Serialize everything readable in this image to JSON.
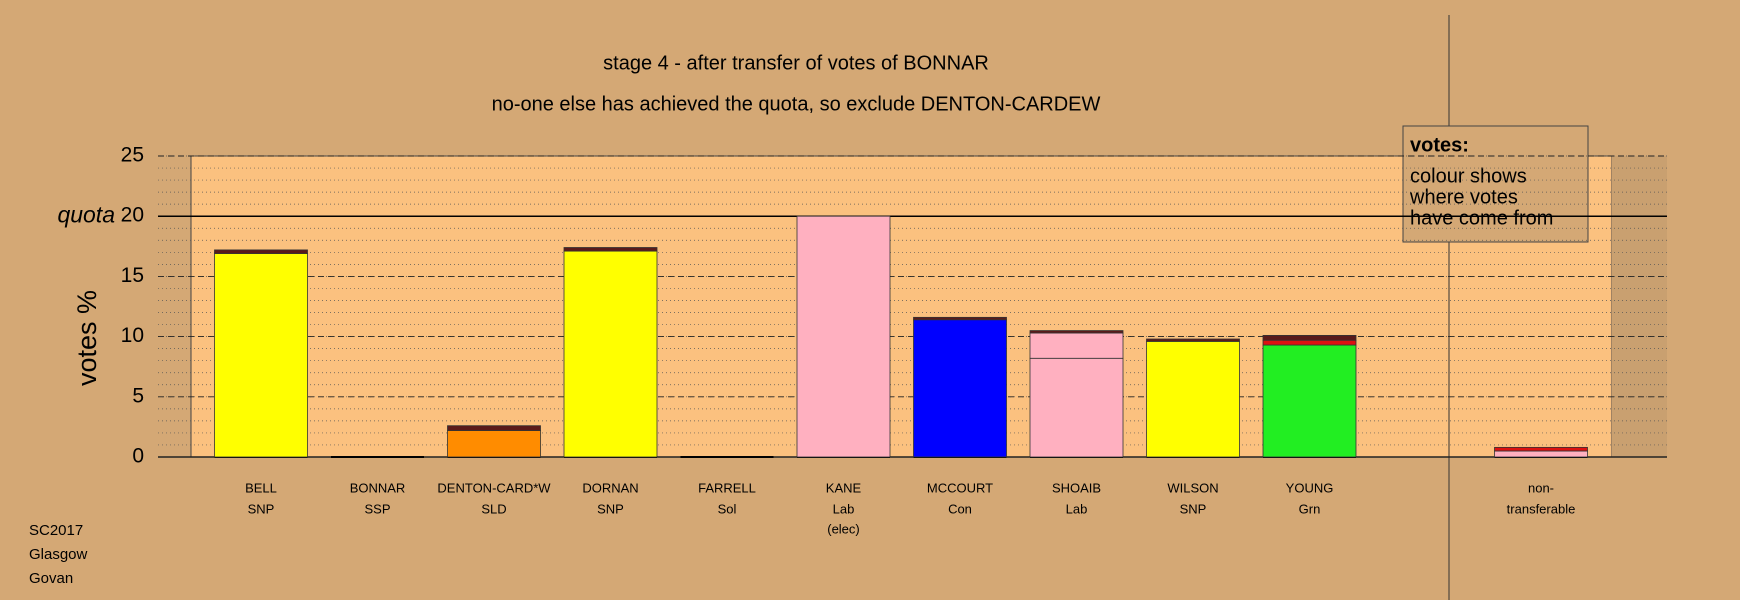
{
  "chart_data": {
    "type": "bar",
    "stacked": true,
    "title": "stage 4 - after transfer of votes of BONNAR",
    "subtitle": "no-one else has achieved the quota, so exclude DENTON-CARDEW",
    "y_label": "votes %",
    "categories": [
      "BELL",
      "BONNAR",
      "DENTON-CARD*W",
      "DORNAN",
      "FARRELL",
      "KANE",
      "MCCOURT",
      "SHOAIB",
      "WILSON",
      "YOUNG",
      "non-"
    ],
    "parties": [
      "SNP",
      "SSP",
      "SLD",
      "SNP",
      "Sol",
      "Lab",
      "Con",
      "Lab",
      "SNP",
      "Grn",
      "transferable"
    ],
    "notes": [
      null,
      null,
      null,
      null,
      null,
      "(elec)",
      null,
      null,
      null,
      null,
      null
    ],
    "series": [
      {
        "color": "#ffff00",
        "values": [
          16.9,
          null,
          null,
          17.1,
          null,
          null,
          null,
          null,
          9.6,
          null,
          null
        ]
      },
      {
        "color": "#ff8c00",
        "values": [
          null,
          null,
          2.2,
          null,
          null,
          null,
          null,
          null,
          null,
          null,
          null
        ]
      },
      {
        "color": "#ffb0c0",
        "values": [
          null,
          null,
          null,
          null,
          null,
          20,
          null,
          8.2,
          null,
          null,
          0.5
        ]
      },
      {
        "color": "#ffb0c0",
        "values": [
          null,
          null,
          null,
          null,
          null,
          null,
          null,
          2.1,
          null,
          null,
          null
        ]
      },
      {
        "color": "#0000ff",
        "values": [
          null,
          null,
          null,
          null,
          null,
          null,
          11.4,
          null,
          null,
          null,
          null
        ]
      },
      {
        "color": "#22ee22",
        "values": [
          null,
          null,
          null,
          null,
          null,
          null,
          null,
          null,
          null,
          9.3,
          null
        ]
      },
      {
        "color": "#dd1111",
        "values": [
          null,
          null,
          null,
          null,
          null,
          null,
          null,
          null,
          null,
          0.4,
          0.3
        ]
      },
      {
        "color": "#5a1a1a",
        "values": [
          0.3,
          null,
          0.4,
          0.3,
          null,
          null,
          0.2,
          0.2,
          0.2,
          0.4,
          null
        ]
      }
    ],
    "ylim": [
      0,
      25
    ],
    "yticks": [
      0,
      5,
      10,
      15,
      20,
      25
    ],
    "minor_step": 1,
    "quota": {
      "label": "quota",
      "value": 20
    },
    "legend_lines": [
      "votes:",
      "colour shows",
      "where votes",
      "have come from"
    ],
    "footer": [
      "SC2017",
      "Glasgow",
      "Govan"
    ]
  }
}
